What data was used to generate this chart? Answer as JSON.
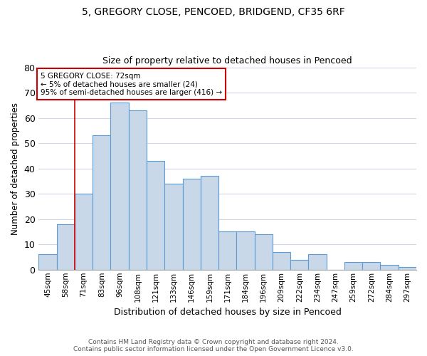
{
  "title_line1": "5, GREGORY CLOSE, PENCOED, BRIDGEND, CF35 6RF",
  "title_line2": "Size of property relative to detached houses in Pencoed",
  "xlabel": "Distribution of detached houses by size in Pencoed",
  "ylabel": "Number of detached properties",
  "categories": [
    "45sqm",
    "58sqm",
    "71sqm",
    "83sqm",
    "96sqm",
    "108sqm",
    "121sqm",
    "133sqm",
    "146sqm",
    "159sqm",
    "171sqm",
    "184sqm",
    "196sqm",
    "209sqm",
    "222sqm",
    "234sqm",
    "247sqm",
    "259sqm",
    "272sqm",
    "284sqm",
    "297sqm"
  ],
  "values": [
    6,
    18,
    30,
    53,
    66,
    63,
    43,
    34,
    36,
    37,
    15,
    15,
    14,
    7,
    4,
    6,
    0,
    3,
    3,
    2,
    1
  ],
  "bar_color": "#c8d8e8",
  "bar_edge_color": "#5b9bd5",
  "ylim": [
    0,
    80
  ],
  "yticks": [
    0,
    10,
    20,
    30,
    40,
    50,
    60,
    70,
    80
  ],
  "annotation_title": "5 GREGORY CLOSE: 72sqm",
  "annotation_line1": "← 5% of detached houses are smaller (24)",
  "annotation_line2": "95% of semi-detached houses are larger (416) →",
  "annotation_box_color": "#ffffff",
  "annotation_box_edge_color": "#cc0000",
  "vline_color": "#cc0000",
  "vline_x_index": 1.5,
  "footer_line1": "Contains HM Land Registry data © Crown copyright and database right 2024.",
  "footer_line2": "Contains public sector information licensed under the Open Government Licence v3.0.",
  "background_color": "#ffffff",
  "grid_color": "#d0d8e8"
}
